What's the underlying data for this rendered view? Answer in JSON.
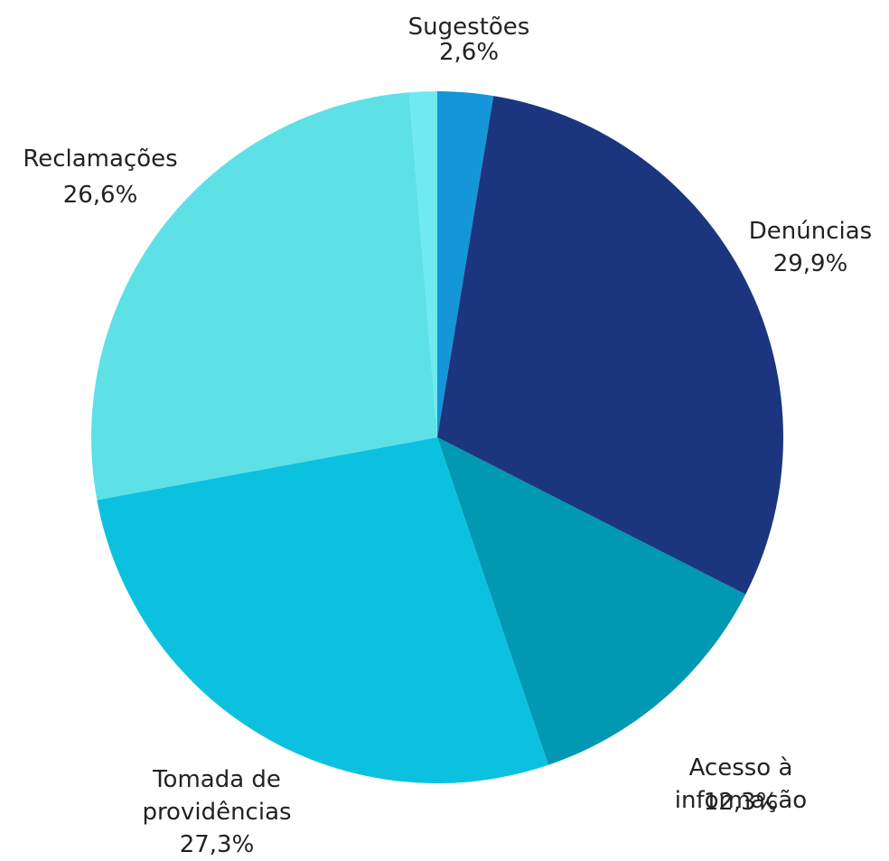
{
  "chart_data": {
    "type": "pie",
    "categories": [
      "Sugestões",
      "Denúncias",
      "Acesso à informação",
      "Tomada de providências",
      "Reclamações",
      null
    ],
    "values": [
      2.6,
      29.9,
      12.3,
      27.3,
      26.6,
      1.3
    ],
    "value_labels": [
      "2,6%",
      "29,9%",
      "12,3%",
      "27,3%",
      "26,6%",
      null
    ],
    "colors": [
      "#1496d8",
      "#1b367f",
      "#0098b3",
      "#0cc1e0",
      "#5de1e6",
      "#6feaf0"
    ]
  }
}
